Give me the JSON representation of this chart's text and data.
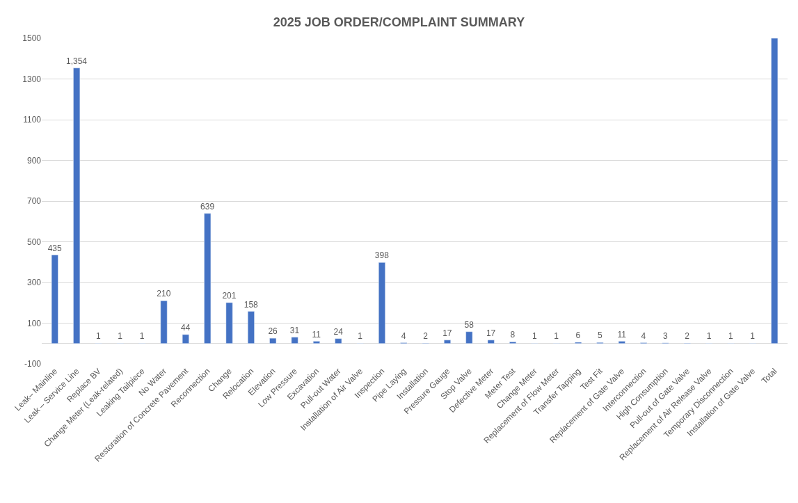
{
  "chart_data": {
    "type": "bar",
    "title": "2025 JOB ORDER/COMPLAINT SUMMARY",
    "categories": [
      "Leak– Mainline",
      "Leak – Service Line",
      "Replace BV",
      "Change Meter (Leak-related)",
      "Leaking Tailpiece",
      "No Water",
      "Restoration of Concrete Pavement",
      "Reconnection",
      "Change",
      "Relocation",
      "Elevation",
      "Low Pressure",
      "Excavation",
      "Pull-out Water",
      "Installation of Air Valve",
      "Inspection",
      "Pipe Laying",
      "Installation",
      "Pressure Gauge",
      "Stop Valve",
      "Defective Meter",
      "Meter Test",
      "Change Meter",
      "Replacement of Flow Meter",
      "Transfer Tapping",
      "Test Fit",
      "Replacement of Gate Valve",
      "Interconnection",
      "High Consumption",
      "Pull-out of Gate Valve",
      "Replacement of Air Release Valve",
      "Temporary Disconnection",
      "Installation of Gate Valve",
      "Total"
    ],
    "values": [
      435,
      1354,
      1,
      1,
      1,
      210,
      44,
      639,
      201,
      158,
      26,
      31,
      11,
      24,
      1,
      398,
      4,
      2,
      17,
      58,
      17,
      8,
      1,
      1,
      6,
      5,
      11,
      4,
      3,
      2,
      1,
      1,
      1,
      1500
    ],
    "value_labels": [
      "435",
      "1,354",
      "1",
      "1",
      "1",
      "210",
      "44",
      "639",
      "201",
      "158",
      "26",
      "31",
      "11",
      "24",
      "1",
      "398",
      "4",
      "2",
      "17",
      "58",
      "17",
      "8",
      "1",
      "1",
      "6",
      "5",
      "11",
      "4",
      "3",
      "2",
      "1",
      "1",
      "1",
      null
    ],
    "color": "#4472c4",
    "ylim": [
      -100,
      1500
    ],
    "yticks": [
      -100,
      100,
      300,
      500,
      700,
      900,
      1100,
      1300,
      1500
    ],
    "grid": "y",
    "legend": false
  }
}
